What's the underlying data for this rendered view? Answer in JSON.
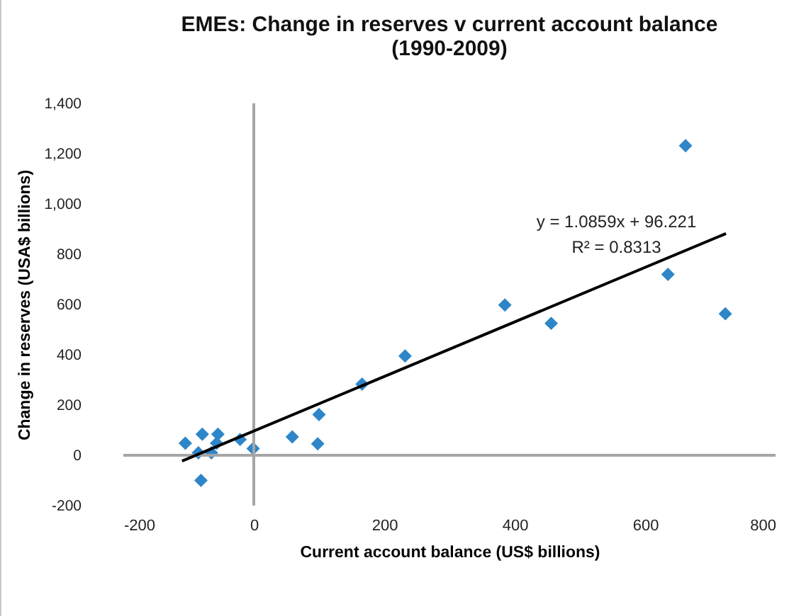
{
  "chart_data": {
    "type": "scatter",
    "title": "EMEs: Change in reserves v current account balance\n(1990-2009)",
    "xlabel": "Current account  balance  (US$ billions)",
    "ylabel": "Change in reserves (USA$ billions)",
    "xlim": [
      -200,
      800
    ],
    "xticks": [
      -200,
      0,
      200,
      400,
      600,
      800
    ],
    "ylim": [
      -200,
      1400
    ],
    "yticks": [
      -200,
      0,
      200,
      400,
      600,
      800,
      {
        "value": 1000,
        "label": "1,000"
      },
      {
        "value": 1200,
        "label": "1,200"
      },
      {
        "value": 1400,
        "label": "1,400"
      }
    ],
    "marker": "diamond",
    "series": [
      {
        "color": "#2e86c8",
        "x": [
          -105,
          -85,
          -79,
          -81,
          -65,
          -55,
          -57,
          -21,
          -1,
          59,
          98,
          100,
          166,
          232,
          385,
          456,
          635,
          662,
          723
        ],
        "values": [
          48,
          10,
          84,
          -100,
          10,
          84,
          48,
          63,
          27,
          73,
          46,
          162,
          283,
          395,
          598,
          525,
          720,
          1232,
          563
        ]
      },
      {
        "type": "line",
        "color": "#000000",
        "marker": "none",
        "line_style": "solid",
        "x": [
          -110,
          724
        ],
        "values": [
          -23,
          882
        ]
      }
    ],
    "annotations": [
      "y = 1.0859x + 96.221",
      "R² = 0.8313"
    ]
  }
}
